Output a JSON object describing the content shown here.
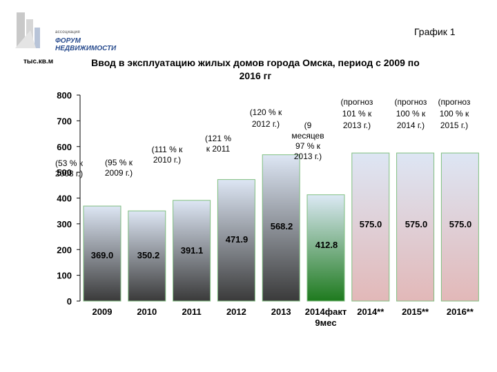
{
  "header": {
    "logo_small": "ассоциация",
    "logo_line1": "ФОРУМ",
    "logo_line2": "НЕДВИЖИМОСТИ",
    "graph_label": "График 1"
  },
  "chart_data": {
    "type": "bar",
    "title_line1": "Ввод в эксплуатацию жилых домов города Омска, период с 2009 по",
    "title_line2": "2016 гг",
    "ylabel": "тыс.кв.м",
    "ylim": [
      0,
      800
    ],
    "yticks": [
      0,
      100,
      200,
      300,
      400,
      500,
      600,
      700,
      800
    ],
    "categories": [
      "2009",
      "2010",
      "2011",
      "2012",
      "2013",
      "2014факт 9мес",
      "2014**",
      "2015**",
      "2016**"
    ],
    "category_lines": [
      [
        "2009"
      ],
      [
        "2010"
      ],
      [
        "2011"
      ],
      [
        "2012"
      ],
      [
        "2013"
      ],
      [
        "2014факт",
        "9мес"
      ],
      [
        "2014**"
      ],
      [
        "2015**"
      ],
      [
        "2016**"
      ]
    ],
    "values": [
      369.0,
      350.2,
      391.1,
      471.9,
      568.2,
      412.8,
      575.0,
      575.0,
      575.0
    ],
    "value_labels": [
      "369.0",
      "350.2",
      "391.1",
      "471.9",
      "568.2",
      "412.8",
      "575.0",
      "575.0",
      "575.0"
    ],
    "annotations": [
      [
        "(53 % к",
        "2008 г.)"
      ],
      [
        "(95 % к",
        "2009 г.)"
      ],
      [
        "(111 % к",
        "2010 г.)"
      ],
      [
        "(121 %",
        "к 2011"
      ],
      [
        "(120 % к",
        "2012 г.)"
      ],
      [
        "(9",
        "месяцев",
        "97 % к",
        "2013 г.)"
      ],
      [
        "(прогноз",
        "101 % к",
        "2013 г.)"
      ],
      [
        "(прогноз",
        "100 % к",
        "2014 г.)"
      ],
      [
        "(прогноз",
        "100 % к",
        "2015 г.)"
      ]
    ],
    "colors": {
      "actual_top": "#dde6f4",
      "actual_bottom": "#3a3a3a",
      "fact9_top": "#dce9f5",
      "fact9_bottom": "#1e7a1e",
      "forecast_top": "#dde6f4",
      "forecast_bottom": "#e2b8b8",
      "bar_border": "#7fbf7f"
    }
  }
}
